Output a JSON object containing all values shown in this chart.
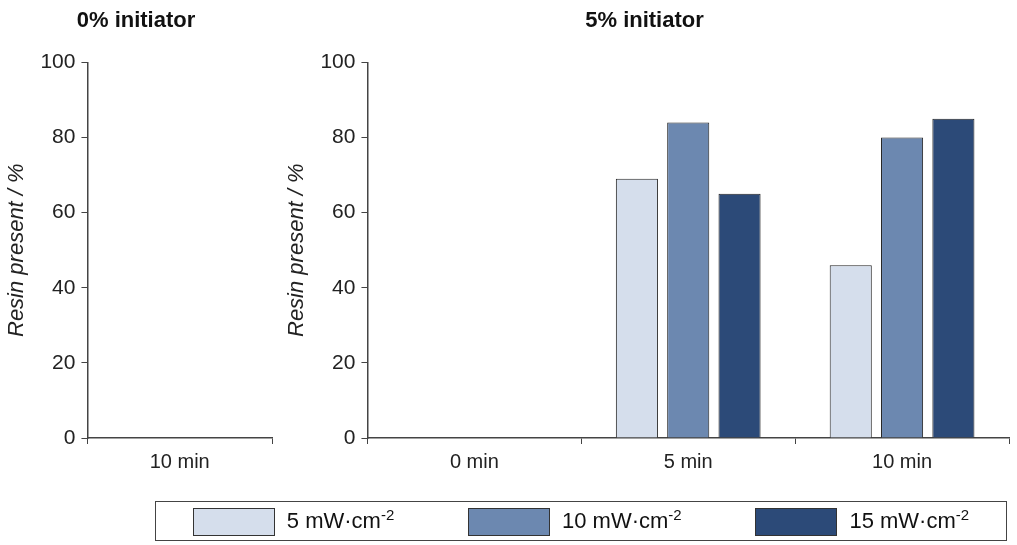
{
  "chart_data": [
    {
      "type": "bar",
      "title": "0% initiator",
      "ylabel": "Resin present / %",
      "categories": [
        "10 min"
      ],
      "ylim": [
        0,
        100
      ],
      "yticks": [
        0,
        20,
        40,
        60,
        80,
        100
      ],
      "grid": false,
      "legend": false,
      "series": [
        {
          "color": "#d5deec",
          "values": [
            0
          ]
        },
        {
          "color": "#6c88b0",
          "values": [
            0
          ]
        },
        {
          "color": "#2c4a78",
          "values": [
            0
          ]
        }
      ]
    },
    {
      "type": "bar",
      "title": "5% initiator",
      "ylabel": "Resin present / %",
      "categories": [
        "0 min",
        "5 min",
        "10 min"
      ],
      "ylim": [
        0,
        100
      ],
      "yticks": [
        0,
        20,
        40,
        60,
        80,
        100
      ],
      "grid": false,
      "legend": "bottom",
      "series": [
        {
          "name": "5 mW·cm$^{-2}$",
          "color": "#d5deec",
          "values": [
            0,
            69,
            46
          ]
        },
        {
          "name": "10 mW·cm$^{-2}$",
          "color": "#6c88b0",
          "values": [
            0,
            84,
            80
          ]
        },
        {
          "name": "15 mW·cm$^{-2}$",
          "color": "#2c4a78",
          "values": [
            0,
            65,
            85
          ]
        }
      ]
    }
  ]
}
